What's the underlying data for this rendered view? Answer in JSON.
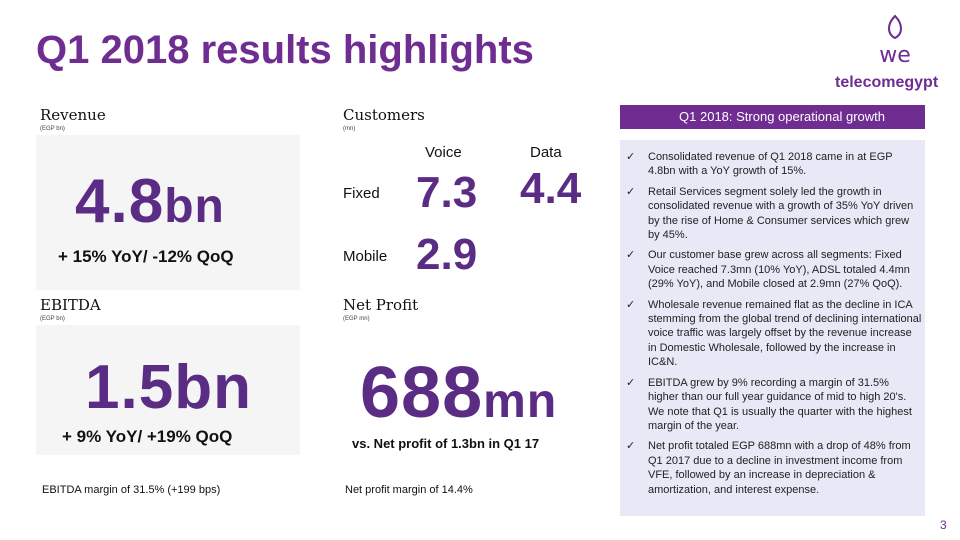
{
  "header": {
    "title": "Q1 2018 results highlights",
    "logo_mark": "we",
    "logo_text": "telecomegypt"
  },
  "revenue": {
    "label": "Revenue",
    "unit": "(EGP bn)",
    "value": "4.8",
    "suffix": "bn",
    "change": "+ 15% YoY/ -12% QoQ"
  },
  "customers": {
    "label": "Customers",
    "unit": "(mn)",
    "columns": [
      "Voice",
      "Data"
    ],
    "rows": [
      {
        "label": "Fixed",
        "values": [
          "7.3",
          "4.4"
        ]
      },
      {
        "label": "Mobile",
        "values": [
          "2.9"
        ]
      }
    ]
  },
  "ebitda": {
    "label": "EBITDA",
    "unit": "(EGP bn)",
    "value": "1.5",
    "suffix": "bn",
    "change": "+ 9% YoY/ +19% QoQ",
    "note": "EBITDA margin of 31.5% (+199 bps)"
  },
  "net_profit": {
    "label": "Net Profit",
    "unit": "(EGP mn)",
    "value": "688",
    "suffix": "mn",
    "change": "vs. Net profit of 1.3bn in Q1 17",
    "note": "Net profit margin of 14.4%"
  },
  "sidebar": {
    "title": "Q1 2018: Strong operational growth",
    "bullets": [
      "Consolidated revenue of Q1 2018 came in at EGP 4.8bn with a YoY growth of 15%.",
      "Retail Services segment solely led the growth in consolidated revenue with a growth of 35% YoY driven by the rise of Home & Consumer services which grew by 45%.",
      "Our customer base grew across all segments: Fixed Voice reached 7.3mn (10% YoY), ADSL totaled 4.4mn (29% YoY), and Mobile closed at 2.9mn (27% QoQ).",
      "Wholesale revenue remained flat as the decline in ICA stemming from the global trend of declining international voice traffic was largely offset by the revenue increase in Domestic Wholesale, followed by the increase in IC&N.",
      "EBITDA grew by 9% recording a margin of 31.5% higher than our full year guidance of mid to high 20's. We note that Q1 is usually the quarter with the highest margin of the year.",
      "Net profit totaled EGP 688mn with a drop of 48% from Q1 2017 due to a decline in investment income from VFE, followed by an increase in depreciation & amortization, and interest expense."
    ]
  },
  "footer": {
    "page": "3"
  }
}
